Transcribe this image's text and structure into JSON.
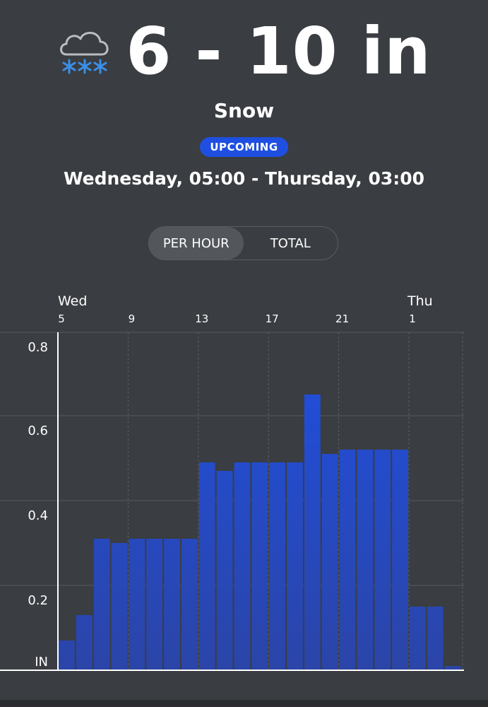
{
  "header": {
    "icon": "snow-cloud-icon",
    "amount": "6 - 10 in",
    "condition": "Snow",
    "badge": "UPCOMING",
    "period": "Wednesday, 05:00 - Thursday, 03:00"
  },
  "toggle": {
    "options": [
      "PER HOUR",
      "TOTAL"
    ],
    "selected": "PER HOUR"
  },
  "colors": {
    "background": "#3a3d41",
    "bar": "#1f4fe0",
    "badge": "#1f4fe0",
    "snowflake": "#3a8fe8"
  },
  "chart_data": {
    "type": "bar",
    "day_labels": [
      {
        "label": "Wed",
        "at_hour": 5
      },
      {
        "label": "Thu",
        "at_hour": 25
      }
    ],
    "tick_labels": [
      "5",
      "9",
      "13",
      "17",
      "21",
      "1"
    ],
    "tick_hours": [
      5,
      9,
      13,
      17,
      21,
      25
    ],
    "x": [
      5,
      6,
      7,
      8,
      9,
      10,
      11,
      12,
      13,
      14,
      15,
      16,
      17,
      18,
      19,
      20,
      21,
      22,
      23,
      24,
      25,
      26,
      27
    ],
    "values": [
      0.07,
      0.13,
      0.31,
      0.3,
      0.31,
      0.31,
      0.31,
      0.31,
      0.49,
      0.47,
      0.49,
      0.49,
      0.49,
      0.49,
      0.65,
      0.51,
      0.52,
      0.52,
      0.52,
      0.52,
      0.15,
      0.15,
      0.01
    ],
    "ylim": [
      0,
      0.8
    ],
    "yticks": [
      0.2,
      0.4,
      0.6,
      0.8
    ],
    "ylabel": "IN",
    "grid": true
  }
}
